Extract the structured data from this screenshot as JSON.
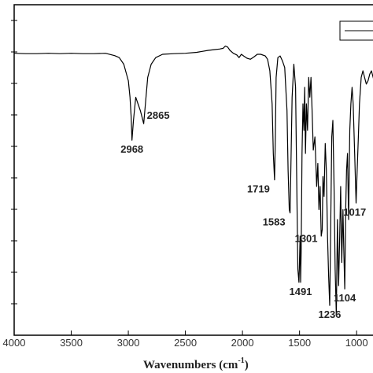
{
  "chart_data": {
    "type": "line",
    "xlabel": "Wavenumbers (cm",
    "xlabel_sup": "-1",
    "xlabel_close": ")",
    "xlim": [
      4000,
      760
    ],
    "ylim": [
      0,
      1
    ],
    "x_ticks": [
      4000,
      3500,
      3000,
      2500,
      2000,
      1500,
      1000
    ],
    "x_tick_labels": [
      "4000",
      "3500",
      "3000",
      "2500",
      "2000",
      "1500",
      "1000"
    ],
    "y_tick_count": 10,
    "legend": "top-right",
    "color": "#000000",
    "series": [
      {
        "x": [
          4000,
          3900,
          3800,
          3700,
          3600,
          3500,
          3400,
          3300,
          3200,
          3120,
          3080,
          3040,
          3000,
          2985,
          2975,
          2968,
          2955,
          2935,
          2915,
          2895,
          2880,
          2865,
          2850,
          2830,
          2800,
          2760,
          2700,
          2600,
          2500,
          2400,
          2300,
          2250,
          2200,
          2170,
          2150,
          2130,
          2110,
          2080,
          2050,
          2030,
          2010,
          1990,
          1960,
          1930,
          1900,
          1870,
          1840,
          1800,
          1780,
          1760,
          1740,
          1730,
          1719,
          1712,
          1705,
          1690,
          1670,
          1650,
          1630,
          1610,
          1600,
          1590,
          1583,
          1576,
          1565,
          1550,
          1535,
          1525,
          1515,
          1505,
          1495,
          1491,
          1486,
          1478,
          1470,
          1462,
          1455,
          1448,
          1440,
          1430,
          1420,
          1410,
          1400,
          1390,
          1380,
          1365,
          1350,
          1340,
          1330,
          1320,
          1310,
          1301,
          1295,
          1285,
          1275,
          1265,
          1255,
          1245,
          1236,
          1228,
          1218,
          1208,
          1198,
          1188,
          1178,
          1168,
          1158,
          1148,
          1140,
          1130,
          1120,
          1112,
          1104,
          1096,
          1088,
          1080,
          1070,
          1060,
          1050,
          1040,
          1030,
          1017,
          1005,
          995,
          985,
          975,
          960,
          945,
          930,
          915,
          900,
          885,
          870,
          855,
          840,
          825,
          810,
          795,
          780,
          770,
          765,
          760
        ],
        "y": [
          0.853,
          0.852,
          0.852,
          0.853,
          0.852,
          0.853,
          0.852,
          0.852,
          0.853,
          0.846,
          0.84,
          0.82,
          0.77,
          0.72,
          0.66,
          0.59,
          0.65,
          0.72,
          0.7,
          0.68,
          0.66,
          0.64,
          0.7,
          0.78,
          0.82,
          0.84,
          0.85,
          0.852,
          0.853,
          0.856,
          0.862,
          0.864,
          0.866,
          0.868,
          0.875,
          0.872,
          0.862,
          0.853,
          0.848,
          0.84,
          0.85,
          0.845,
          0.838,
          0.835,
          0.842,
          0.85,
          0.85,
          0.845,
          0.835,
          0.8,
          0.7,
          0.55,
          0.47,
          0.6,
          0.78,
          0.84,
          0.845,
          0.83,
          0.81,
          0.68,
          0.5,
          0.38,
          0.37,
          0.5,
          0.72,
          0.82,
          0.75,
          0.48,
          0.2,
          0.16,
          0.3,
          0.16,
          0.25,
          0.55,
          0.7,
          0.62,
          0.75,
          0.55,
          0.7,
          0.62,
          0.78,
          0.72,
          0.78,
          0.68,
          0.56,
          0.6,
          0.45,
          0.52,
          0.38,
          0.45,
          0.3,
          0.32,
          0.48,
          0.42,
          0.58,
          0.5,
          0.3,
          0.18,
          0.09,
          0.3,
          0.6,
          0.65,
          0.45,
          0.2,
          0.06,
          0.35,
          0.15,
          0.3,
          0.45,
          0.22,
          0.38,
          0.26,
          0.14,
          0.38,
          0.5,
          0.55,
          0.35,
          0.62,
          0.7,
          0.75,
          0.7,
          0.55,
          0.4,
          0.5,
          0.6,
          0.7,
          0.78,
          0.8,
          0.78,
          0.76,
          0.77,
          0.79,
          0.8,
          0.78,
          0.76,
          0.7,
          0.62,
          0.55,
          0.45,
          0.4,
          0.6,
          0.5
        ]
      }
    ],
    "annotations": [
      {
        "text": "2968",
        "x": 2968,
        "y": 0.59,
        "pos": "below"
      },
      {
        "text": "2865",
        "x": 2865,
        "y": 0.64,
        "pos": "right"
      },
      {
        "text": "1719",
        "x": 1719,
        "y": 0.47,
        "pos": "below-left"
      },
      {
        "text": "1583",
        "x": 1583,
        "y": 0.37,
        "pos": "below-left"
      },
      {
        "text": "1301",
        "x": 1301,
        "y": 0.32,
        "pos": "below-left"
      },
      {
        "text": "1491",
        "x": 1491,
        "y": 0.16,
        "pos": "below"
      },
      {
        "text": "1236",
        "x": 1236,
        "y": 0.09,
        "pos": "below"
      },
      {
        "text": "1104",
        "x": 1104,
        "y": 0.14,
        "pos": "below"
      },
      {
        "text": "1017",
        "x": 1017,
        "y": 0.4,
        "pos": "below"
      }
    ]
  }
}
